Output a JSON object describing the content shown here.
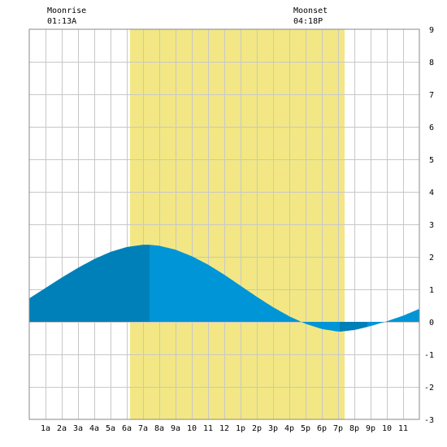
{
  "moonrise": {
    "label": "Moonrise",
    "time": "01:13A",
    "hour": 1.22
  },
  "moonset": {
    "label": "Moonset",
    "time": "04:18P",
    "hour": 16.3
  },
  "colors": {
    "daylight": "#f2e784",
    "grid": "#c8c8c8",
    "frame": "#888888",
    "tide_light": "#0095d6",
    "tide_dark": "#0080b8",
    "background": "#ffffff"
  },
  "chart_data": {
    "type": "area",
    "title": "",
    "xlabel": "",
    "ylabel": "",
    "xlim": [
      0,
      24
    ],
    "ylim": [
      -3,
      9
    ],
    "grid": true,
    "x_tick_labels": [
      "1a",
      "2a",
      "3a",
      "4a",
      "5a",
      "6a",
      "7a",
      "8a",
      "9a",
      "10",
      "11",
      "12",
      "1p",
      "2p",
      "3p",
      "4p",
      "5p",
      "6p",
      "7p",
      "8p",
      "9p",
      "10",
      "11"
    ],
    "y_tick_labels": [
      "-3",
      "-2",
      "-1",
      "0",
      "1",
      "2",
      "3",
      "4",
      "5",
      "6",
      "7",
      "8",
      "9"
    ],
    "daylight_hours": [
      6.2,
      19.4
    ],
    "tide_extrema": [
      {
        "hour": 7.4,
        "height": 2.35,
        "type": "high"
      },
      {
        "hour": 19.1,
        "height": -0.3,
        "type": "low"
      }
    ],
    "series": [
      {
        "x": [
          0,
          1,
          2,
          3,
          4,
          5,
          6,
          7,
          7.4,
          8,
          9,
          10,
          11,
          12,
          13,
          14,
          15,
          16,
          17,
          18,
          19,
          19.1,
          20,
          21,
          22,
          23,
          24
        ],
        "values": [
          0.72,
          1.04,
          1.36,
          1.66,
          1.93,
          2.15,
          2.3,
          2.37,
          2.37,
          2.34,
          2.22,
          2.02,
          1.76,
          1.45,
          1.11,
          0.77,
          0.45,
          0.17,
          -0.06,
          -0.22,
          -0.3,
          -0.3,
          -0.25,
          -0.13,
          0.02,
          0.19,
          0.4
        ]
      }
    ],
    "dark_band_hours": [
      [
        0,
        7.4
      ],
      [
        19.1,
        20.8
      ]
    ]
  }
}
